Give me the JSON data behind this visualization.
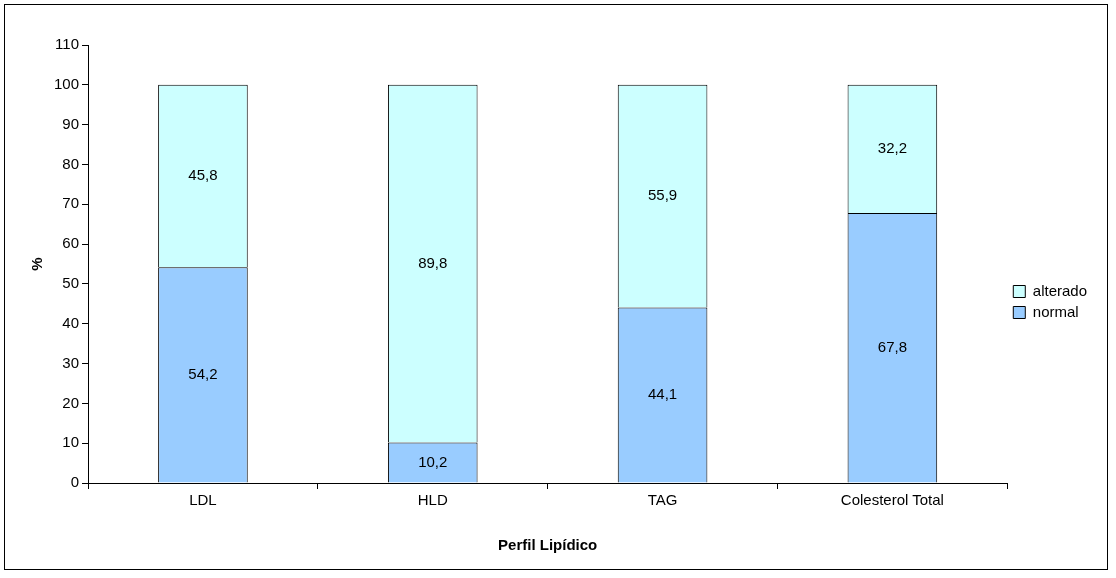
{
  "chart_data": {
    "type": "bar",
    "stacked": true,
    "xlabel": "Perfil Lipídico",
    "ylabel": "%",
    "categories": [
      "LDL",
      "HLD",
      "TAG",
      "Colesterol Total"
    ],
    "series": [
      {
        "name": "normal",
        "color": "#99ccff",
        "values": [
          54.2,
          10.2,
          44.1,
          67.8
        ],
        "value_labels": [
          "54,2",
          "10,2",
          "44,1",
          "67,8"
        ]
      },
      {
        "name": "alterado",
        "color": "#ccffff",
        "values": [
          45.8,
          89.8,
          55.9,
          32.2
        ],
        "value_labels": [
          "45,8",
          "89,8",
          "55,9",
          "32,2"
        ]
      }
    ],
    "ylim": [
      0,
      110
    ],
    "yticks": [
      0,
      10,
      20,
      30,
      40,
      50,
      60,
      70,
      80,
      90,
      100,
      110
    ],
    "grid": false,
    "legend": "right"
  }
}
